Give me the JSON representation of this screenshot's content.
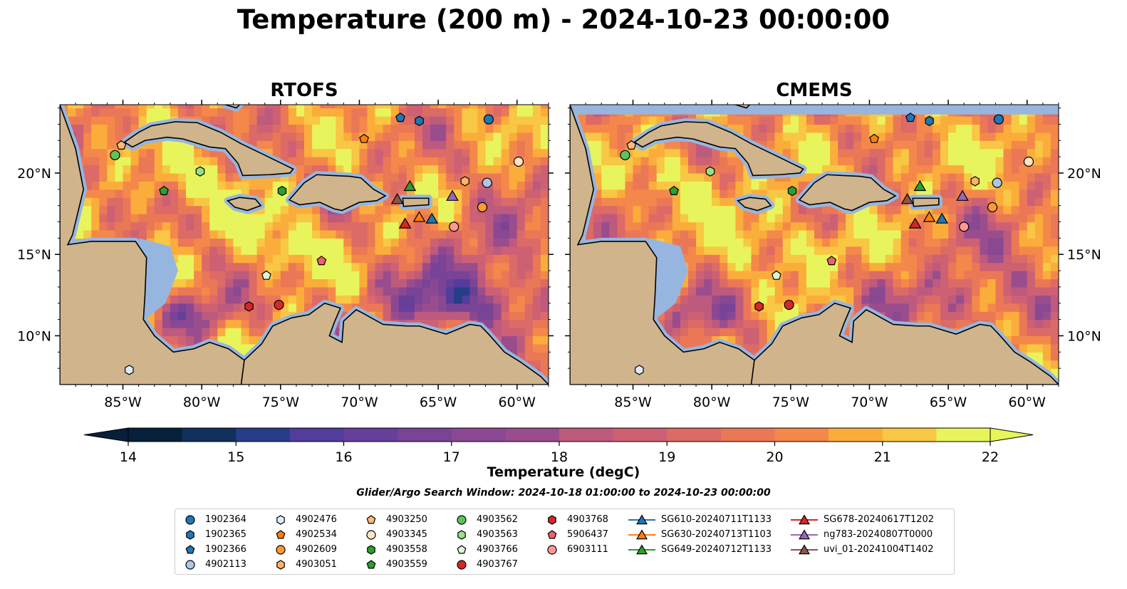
{
  "figure": {
    "title": "Temperature (200 m) - 2024-10-23 00:00:00",
    "search_window": "Glider/Argo Search Window: 2024-10-18 01:00:00 to 2024-10-23 00:00:00"
  },
  "colors": {
    "ocean_dark": "#07203a",
    "shelf": "#96b6e0",
    "land": "#d0b48c",
    "warm_yellow": "#e8f45c"
  },
  "map": {
    "extent": {
      "lon": [
        -89,
        -58
      ],
      "lat": [
        7,
        24.2
      ]
    },
    "lon_ticks": [
      -85,
      -80,
      -75,
      -70,
      -65,
      -60
    ],
    "lon_labels": [
      "85°W",
      "80°W",
      "75°W",
      "70°W",
      "65°W",
      "60°W"
    ],
    "lat_ticks": [
      10,
      15,
      20
    ],
    "lat_labels": [
      "10°N",
      "15°N",
      "20°N"
    ]
  },
  "panels": [
    {
      "title": "RTOFS"
    },
    {
      "title": "CMEMS"
    }
  ],
  "colorbar": {
    "label": "Temperature (degC)",
    "min": 14,
    "max": 22,
    "step": 0.5,
    "ticks": [
      14,
      15,
      16,
      17,
      18,
      19,
      20,
      21,
      22
    ],
    "extend": "both",
    "colormap": "thermal"
  },
  "legend": {
    "columns": [
      [
        {
          "name": "1902364",
          "marker": "circle",
          "color": "#1f77b4"
        },
        {
          "name": "1902365",
          "marker": "hexagon",
          "color": "#1f77b4"
        },
        {
          "name": "1902366",
          "marker": "pentagon",
          "color": "#1f77b4"
        },
        {
          "name": "4902113",
          "marker": "circle",
          "color": "#aec7e8"
        }
      ],
      [
        {
          "name": "4902476",
          "marker": "hexagon",
          "color": "#deebf7"
        },
        {
          "name": "4902534",
          "marker": "pentagon",
          "color": "#ff7f0e"
        },
        {
          "name": "4902609",
          "marker": "circle",
          "color": "#ff9933"
        },
        {
          "name": "4903051",
          "marker": "hexagon",
          "color": "#ffb366"
        }
      ],
      [
        {
          "name": "4903250",
          "marker": "pentagon",
          "color": "#ffbb78"
        },
        {
          "name": "4903345",
          "marker": "circle",
          "color": "#ffe4c4"
        },
        {
          "name": "4903558",
          "marker": "hexagon",
          "color": "#2ca02c"
        },
        {
          "name": "4903559",
          "marker": "pentagon",
          "color": "#2ca02c"
        }
      ],
      [
        {
          "name": "4903562",
          "marker": "circle",
          "color": "#5cc45c"
        },
        {
          "name": "4903563",
          "marker": "hexagon",
          "color": "#98df8a"
        },
        {
          "name": "4903766",
          "marker": "pentagon",
          "color": "#ddf7d6"
        },
        {
          "name": "4903767",
          "marker": "circle",
          "color": "#d62728"
        }
      ],
      [
        {
          "name": "4903768",
          "marker": "hexagon",
          "color": "#d62728"
        },
        {
          "name": "5906437",
          "marker": "pentagon",
          "color": "#f0606a"
        },
        {
          "name": "6903111",
          "marker": "circle",
          "color": "#ff9896"
        }
      ],
      [
        {
          "name": "SG610-20240711T1133",
          "marker": "triangle",
          "color": "#1f77b4"
        },
        {
          "name": "SG630-20240713T1103",
          "marker": "triangle",
          "color": "#ff7f0e"
        },
        {
          "name": "SG649-20240712T1133",
          "marker": "triangle",
          "color": "#2ca02c"
        }
      ],
      [
        {
          "name": "SG678-20240617T1202",
          "marker": "triangle",
          "color": "#d62728"
        },
        {
          "name": "ng783-20240807T0000",
          "marker": "triangle",
          "color": "#9467bd"
        },
        {
          "name": "uvi_01-20241004T1402",
          "marker": "triangle",
          "color": "#8c564b"
        }
      ]
    ]
  },
  "observations": [
    {
      "id": "1902364",
      "lon": -61.8,
      "lat": 23.3
    },
    {
      "id": "1902365",
      "lon": -66.2,
      "lat": 23.2
    },
    {
      "id": "1902366",
      "lon": -67.4,
      "lat": 23.4
    },
    {
      "id": "4902113",
      "lon": -61.9,
      "lat": 19.4
    },
    {
      "id": "4902476",
      "lon": -84.6,
      "lat": 7.9
    },
    {
      "id": "4902534",
      "lon": -69.7,
      "lat": 22.1
    },
    {
      "id": "4902609",
      "lon": -62.2,
      "lat": 17.9
    },
    {
      "id": "4903051",
      "lon": -63.3,
      "lat": 19.5
    },
    {
      "id": "4903250",
      "lon": -85.1,
      "lat": 21.7
    },
    {
      "id": "4903345",
      "lon": -59.9,
      "lat": 20.7
    },
    {
      "id": "4903558",
      "lon": -74.9,
      "lat": 18.9
    },
    {
      "id": "4903559",
      "lon": -82.4,
      "lat": 18.9
    },
    {
      "id": "4903562",
      "lon": -85.5,
      "lat": 21.1
    },
    {
      "id": "4903563",
      "lon": -80.1,
      "lat": 20.1
    },
    {
      "id": "4903766",
      "lon": -75.9,
      "lat": 13.7
    },
    {
      "id": "4903767",
      "lon": -75.1,
      "lat": 11.9
    },
    {
      "id": "4903768",
      "lon": -77.0,
      "lat": 11.8
    },
    {
      "id": "5906437",
      "lon": -72.4,
      "lat": 14.6
    },
    {
      "id": "6903111",
      "lon": -64.0,
      "lat": 16.7
    },
    {
      "id": "SG610-20240711T1133",
      "lon": -65.4,
      "lat": 17.2
    },
    {
      "id": "SG630-20240713T1103",
      "lon": -66.2,
      "lat": 17.3
    },
    {
      "id": "SG649-20240712T1133",
      "lon": -66.8,
      "lat": 19.2
    },
    {
      "id": "SG678-20240617T1202",
      "lon": -67.1,
      "lat": 16.9
    },
    {
      "id": "ng783-20240807T0000",
      "lon": -64.1,
      "lat": 18.6
    },
    {
      "id": "uvi_01-20241004T1402",
      "lon": -67.6,
      "lat": 18.4
    }
  ],
  "land_polygons": [
    {
      "name": "central-america",
      "pts": [
        [
          -89,
          24.2
        ],
        [
          -88,
          21.5
        ],
        [
          -87.5,
          19
        ],
        [
          -88.2,
          16.2
        ],
        [
          -88.5,
          15.6
        ],
        [
          -87,
          15.8
        ],
        [
          -84.2,
          15.8
        ],
        [
          -83.5,
          14.8
        ],
        [
          -83.6,
          12.5
        ],
        [
          -83.7,
          11
        ],
        [
          -83,
          10
        ],
        [
          -81.8,
          9
        ],
        [
          -80.5,
          9.2
        ],
        [
          -79.5,
          9.6
        ],
        [
          -78.3,
          9.2
        ],
        [
          -77.3,
          8.5
        ],
        [
          -76.8,
          8.2
        ],
        [
          -77.5,
          7
        ],
        [
          -89,
          7
        ]
      ]
    },
    {
      "name": "south-america",
      "pts": [
        [
          -77.3,
          8.5
        ],
        [
          -76.2,
          9.5
        ],
        [
          -75.5,
          10.6
        ],
        [
          -74.3,
          11.1
        ],
        [
          -73.2,
          11.3
        ],
        [
          -72.2,
          12
        ],
        [
          -71.2,
          11.7
        ],
        [
          -71.6,
          10.8
        ],
        [
          -71.9,
          10
        ],
        [
          -71.1,
          9.6
        ],
        [
          -71.0,
          10.9
        ],
        [
          -70.2,
          11.6
        ],
        [
          -69.8,
          11.4
        ],
        [
          -68.5,
          10.7
        ],
        [
          -67,
          10.6
        ],
        [
          -66.2,
          10.6
        ],
        [
          -64.5,
          10.1
        ],
        [
          -63,
          10.7
        ],
        [
          -62.3,
          10.6
        ],
        [
          -61.8,
          10.1
        ],
        [
          -60.8,
          9
        ],
        [
          -59.8,
          8.4
        ],
        [
          -58.5,
          7.5
        ],
        [
          -58,
          7
        ],
        [
          -77.5,
          7
        ]
      ]
    },
    {
      "name": "cuba",
      "pts": [
        [
          -84.9,
          21.9
        ],
        [
          -84,
          22.5
        ],
        [
          -83.2,
          22.9
        ],
        [
          -81.7,
          23.15
        ],
        [
          -80.3,
          23.1
        ],
        [
          -78.8,
          22.5
        ],
        [
          -77.5,
          21.8
        ],
        [
          -76,
          21.1
        ],
        [
          -74.2,
          20.25
        ],
        [
          -74.4,
          20.0
        ],
        [
          -75.7,
          19.9
        ],
        [
          -77.4,
          19.85
        ],
        [
          -77.7,
          20.6
        ],
        [
          -78.5,
          21.5
        ],
        [
          -79.5,
          21.6
        ],
        [
          -81.2,
          22.1
        ],
        [
          -82.2,
          22.2
        ],
        [
          -83.6,
          22.0
        ],
        [
          -84.4,
          21.6
        ]
      ]
    },
    {
      "name": "hispaniola",
      "pts": [
        [
          -74.45,
          18.35
        ],
        [
          -73.5,
          19.4
        ],
        [
          -72.7,
          19.9
        ],
        [
          -71.7,
          19.85
        ],
        [
          -70.6,
          19.8
        ],
        [
          -69.9,
          19.7
        ],
        [
          -69.1,
          19.0
        ],
        [
          -68.35,
          18.6
        ],
        [
          -68.9,
          18.3
        ],
        [
          -70.0,
          18.2
        ],
        [
          -71.1,
          17.7
        ],
        [
          -71.6,
          17.8
        ],
        [
          -72.5,
          18.2
        ],
        [
          -73.8,
          18.05
        ]
      ]
    },
    {
      "name": "jamaica",
      "pts": [
        [
          -78.35,
          18.3
        ],
        [
          -77.6,
          18.5
        ],
        [
          -76.6,
          18.4
        ],
        [
          -76.25,
          18.0
        ],
        [
          -77.1,
          17.7
        ],
        [
          -77.9,
          17.9
        ]
      ]
    },
    {
      "name": "puerto-rico",
      "pts": [
        [
          -67.25,
          18.45
        ],
        [
          -65.6,
          18.45
        ],
        [
          -65.6,
          18.05
        ],
        [
          -67.2,
          17.95
        ]
      ]
    },
    {
      "name": "bahamas-andros",
      "pts": [
        [
          -78.3,
          25
        ],
        [
          -77.6,
          24.2
        ],
        [
          -77.8,
          24.0
        ],
        [
          -78.5,
          24.2
        ]
      ]
    }
  ]
}
